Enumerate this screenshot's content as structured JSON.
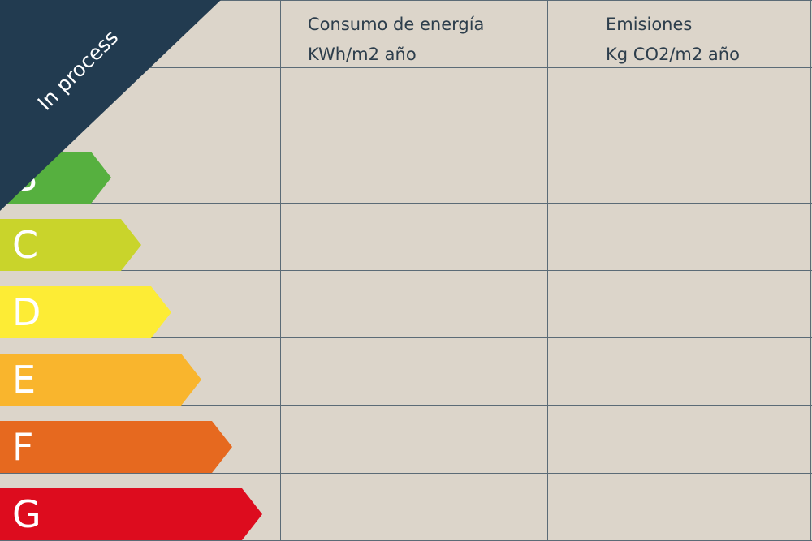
{
  "headers": {
    "consumo": {
      "line1": "Consumo de energía",
      "line2": "KWh/m2 año"
    },
    "emisiones": {
      "line1": "Emisiones",
      "line2": "Kg CO2/m2 año"
    }
  },
  "ratings": [
    {
      "label": "B",
      "color": "#56b03f"
    },
    {
      "label": "C",
      "color": "#c9d42b"
    },
    {
      "label": "D",
      "color": "#fdec35"
    },
    {
      "label": "E",
      "color": "#f9b52d"
    },
    {
      "label": "F",
      "color": "#e6691f"
    },
    {
      "label": "G",
      "color": "#dd0c1e"
    }
  ],
  "banner": {
    "text": "In process",
    "color": "#223b50"
  }
}
